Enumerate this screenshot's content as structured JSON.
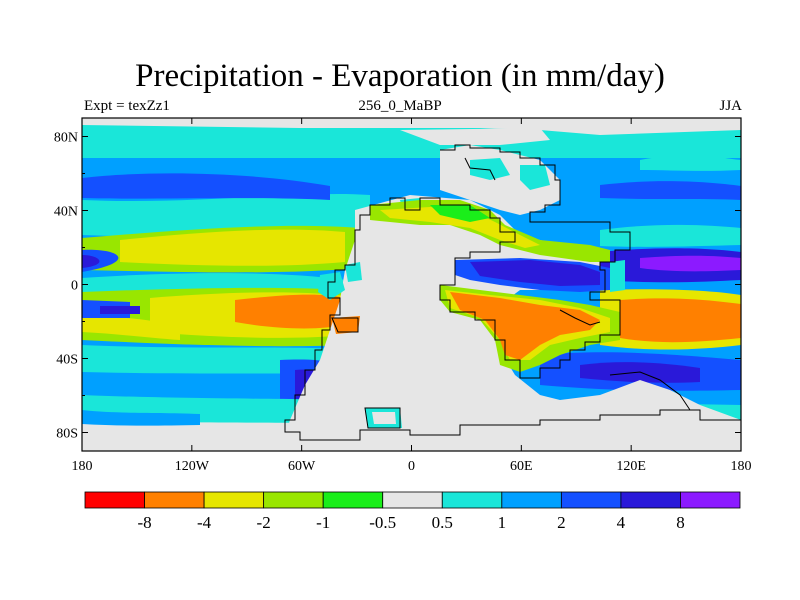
{
  "title": "Precipitation - Evaporation (in mm/day)",
  "subtitle_left": "Expt = texZz1",
  "subtitle_center": "256_0_MaBP",
  "subtitle_right": "JJA",
  "x_ticks": [
    "180",
    "120W",
    "60W",
    "0",
    "60E",
    "120E",
    "180"
  ],
  "y_ticks": [
    "80N",
    "40N",
    "0",
    "40S",
    "80S"
  ],
  "colorbar": {
    "colors": [
      "#ff0000",
      "#ff8000",
      "#e6e600",
      "#99e600",
      "#1aee1a",
      "#e6e6e6",
      "#1ae6d9",
      "#00a0ff",
      "#1450ff",
      "#2a19d9",
      "#8c1aff"
    ],
    "labels": [
      "-8",
      "-4",
      "-2",
      "-1",
      "-0.5",
      "0.5",
      "1",
      "2",
      "4",
      "8"
    ]
  }
}
